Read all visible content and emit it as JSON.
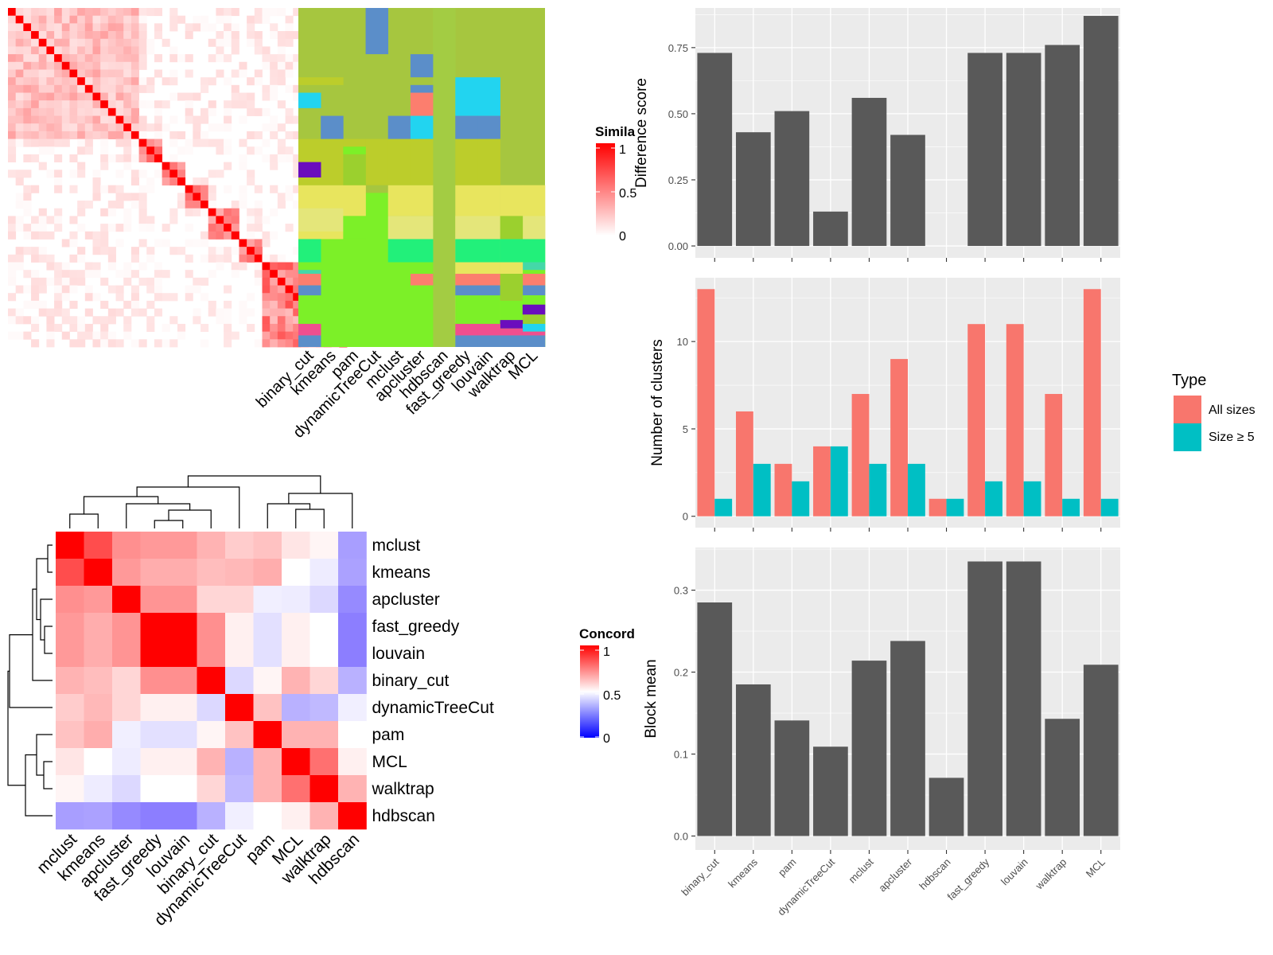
{
  "colors": {
    "panel_bg": "#ebebeb",
    "bar_dark": "#595959",
    "all_sizes": "#f8766d",
    "size_ge5": "#00bfc4",
    "red": "#ff0000",
    "blue": "#0000ff"
  },
  "methods": [
    "binary_cut",
    "kmeans",
    "pam",
    "dynamicTreeCut",
    "mclust",
    "apcluster",
    "hdbscan",
    "fast_greedy",
    "louvain",
    "walktrap",
    "MCL"
  ],
  "similarity_legend": {
    "title": "Simila",
    "ticks": [
      "1",
      "0.5",
      "0"
    ]
  },
  "concordance_legend": {
    "title": "Concord",
    "ticks": [
      "1",
      "0.5",
      "0"
    ]
  },
  "concordance": {
    "row_labels": [
      "mclust",
      "kmeans",
      "apcluster",
      "fast_greedy",
      "louvain",
      "binary_cut",
      "dynamicTreeCut",
      "pam",
      "MCL",
      "walktrap",
      "hdbscan"
    ],
    "col_labels": [
      "mclust",
      "kmeans",
      "apcluster",
      "fast_greedy",
      "louvain",
      "binary_cut",
      "dynamicTreeCut",
      "pam",
      "MCL",
      "walktrap",
      "hdbscan"
    ],
    "matrix": [
      [
        1.0,
        0.85,
        0.72,
        0.7,
        0.7,
        0.65,
        0.6,
        0.62,
        0.55,
        0.52,
        0.25
      ],
      [
        0.85,
        1.0,
        0.7,
        0.66,
        0.66,
        0.63,
        0.64,
        0.66,
        0.5,
        0.45,
        0.26
      ],
      [
        0.72,
        0.7,
        1.0,
        0.71,
        0.71,
        0.58,
        0.58,
        0.46,
        0.45,
        0.4,
        0.2
      ],
      [
        0.7,
        0.66,
        0.71,
        1.0,
        1.0,
        0.72,
        0.53,
        0.42,
        0.53,
        0.5,
        0.17
      ],
      [
        0.7,
        0.66,
        0.71,
        1.0,
        1.0,
        0.72,
        0.53,
        0.42,
        0.53,
        0.5,
        0.17
      ],
      [
        0.65,
        0.63,
        0.58,
        0.72,
        0.72,
        1.0,
        0.4,
        0.52,
        0.65,
        0.58,
        0.3
      ],
      [
        0.6,
        0.64,
        0.58,
        0.53,
        0.53,
        0.4,
        1.0,
        0.62,
        0.3,
        0.32,
        0.46
      ],
      [
        0.62,
        0.66,
        0.46,
        0.42,
        0.42,
        0.52,
        0.62,
        1.0,
        0.65,
        0.65,
        0.5
      ],
      [
        0.55,
        0.5,
        0.45,
        0.53,
        0.53,
        0.65,
        0.3,
        0.65,
        1.0,
        0.78,
        0.53
      ],
      [
        0.52,
        0.45,
        0.4,
        0.5,
        0.5,
        0.58,
        0.32,
        0.65,
        0.78,
        1.0,
        0.65
      ],
      [
        0.25,
        0.26,
        0.2,
        0.17,
        0.17,
        0.3,
        0.46,
        0.5,
        0.53,
        0.65,
        1.0
      ]
    ]
  },
  "chart_data": [
    {
      "type": "bar",
      "categories": [
        "binary_cut",
        "kmeans",
        "pam",
        "dynamicTreeCut",
        "mclust",
        "apcluster",
        "hdbscan",
        "fast_greedy",
        "louvain",
        "walktrap",
        "MCL"
      ],
      "values": [
        0.73,
        0.43,
        0.51,
        0.13,
        0.56,
        0.42,
        0.0,
        0.73,
        0.73,
        0.76,
        0.87
      ],
      "xlabel": "",
      "ylabel": "Difference score",
      "yticks": [
        "0.00",
        "0.25",
        "0.50",
        "0.75"
      ],
      "ylim": [
        -0.045,
        0.9
      ]
    },
    {
      "type": "bar",
      "categories": [
        "binary_cut",
        "kmeans",
        "pam",
        "dynamicTreeCut",
        "mclust",
        "apcluster",
        "hdbscan",
        "fast_greedy",
        "louvain",
        "walktrap",
        "MCL"
      ],
      "series": [
        {
          "name": "All sizes",
          "values": [
            13,
            6,
            3,
            4,
            7,
            9,
            1,
            11,
            11,
            7,
            13
          ]
        },
        {
          "name": "Size ≥ 5",
          "values": [
            1,
            3,
            2,
            4,
            3,
            3,
            1,
            2,
            2,
            1,
            1
          ]
        }
      ],
      "xlabel": "",
      "ylabel": "Number of clusters",
      "yticks": [
        "0",
        "5",
        "10"
      ],
      "ylim": [
        -0.65,
        13.65
      ],
      "legend_title": "Type",
      "legend_position": "right"
    },
    {
      "type": "bar",
      "categories": [
        "binary_cut",
        "kmeans",
        "pam",
        "dynamicTreeCut",
        "mclust",
        "apcluster",
        "hdbscan",
        "fast_greedy",
        "louvain",
        "walktrap",
        "MCL"
      ],
      "values": [
        0.285,
        0.185,
        0.141,
        0.109,
        0.214,
        0.238,
        0.071,
        0.335,
        0.335,
        0.143,
        0.209
      ],
      "xlabel": "",
      "ylabel": "Block mean",
      "yticks": [
        "0.0",
        "0.1",
        "0.2",
        "0.3"
      ],
      "ylim": [
        -0.017,
        0.352
      ]
    }
  ]
}
